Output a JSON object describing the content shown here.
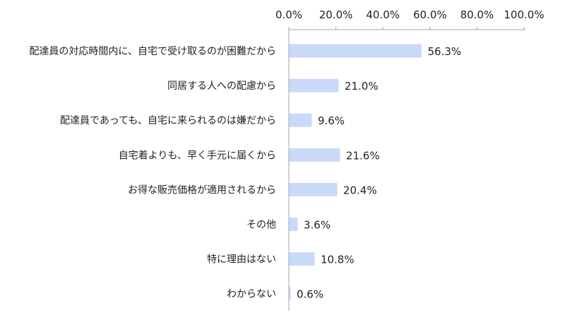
{
  "chart_data": {
    "type": "bar",
    "orientation": "horizontal",
    "categories": [
      "配達員の対応時間内に、自宅で受け取るのが困難だから",
      "同居する人への配慮から",
      "配達員であっても、自宅に来られるのは嫌だから",
      "自宅着よりも、早く手元に届くから",
      "お得な販売価格が適用されるから",
      "その他",
      "特に理由はない",
      "わからない"
    ],
    "values": [
      56.3,
      21.0,
      9.6,
      21.6,
      20.4,
      3.6,
      10.8,
      0.6
    ],
    "value_labels": [
      "56.3%",
      "21.0%",
      "9.6%",
      "21.6%",
      "20.4%",
      "3.6%",
      "10.8%",
      "0.6%"
    ],
    "xlim": [
      0,
      100
    ],
    "x_ticks": [
      0,
      20,
      40,
      60,
      80,
      100
    ],
    "x_tick_labels": [
      "0.0%",
      "20.0%",
      "40.0%",
      "60.0%",
      "80.0%",
      "100.0%"
    ],
    "x_axis_position": "top",
    "grid": false,
    "legend": "none",
    "title": "",
    "xlabel": "",
    "ylabel": "",
    "colors": {
      "bar": "#c9daf8",
      "axis": "#a6a6a6",
      "text": "#222222"
    }
  }
}
